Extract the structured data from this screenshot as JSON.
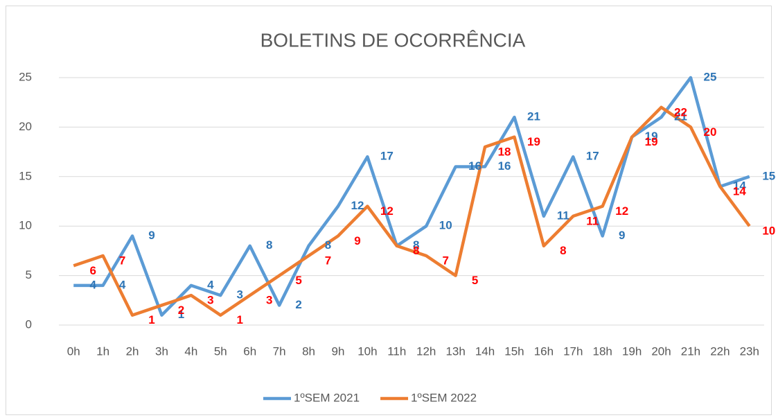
{
  "chart_data": {
    "type": "line",
    "title": "BOLETINS DE OCORRÊNCIA",
    "categories": [
      "0h",
      "1h",
      "2h",
      "3h",
      "4h",
      "5h",
      "6h",
      "7h",
      "8h",
      "9h",
      "10h",
      "11h",
      "12h",
      "13h",
      "14h",
      "15h",
      "16h",
      "17h",
      "18h",
      "19h",
      "20h",
      "21h",
      "22h",
      "23h"
    ],
    "series": [
      {
        "name": "1ºSEM 2021",
        "color": "#5b9bd5",
        "label_color": "#2e75b6",
        "values": [
          4,
          4,
          9,
          1,
          4,
          3,
          8,
          2,
          8,
          12,
          17,
          8,
          10,
          16,
          16,
          21,
          11,
          17,
          9,
          19,
          21,
          25,
          14,
          15
        ]
      },
      {
        "name": "1ºSEM 2022",
        "color": "#ed7d31",
        "label_color": "#ff0000",
        "values": [
          6,
          7,
          1,
          2,
          3,
          1,
          3,
          5,
          7,
          9,
          12,
          8,
          7,
          5,
          18,
          19,
          8,
          11,
          12,
          19,
          22,
          20,
          14,
          10
        ]
      }
    ],
    "ylim": [
      0,
      25
    ],
    "yticks": [
      0,
      5,
      10,
      15,
      20,
      25
    ],
    "grid": true,
    "legend": "bottom"
  }
}
